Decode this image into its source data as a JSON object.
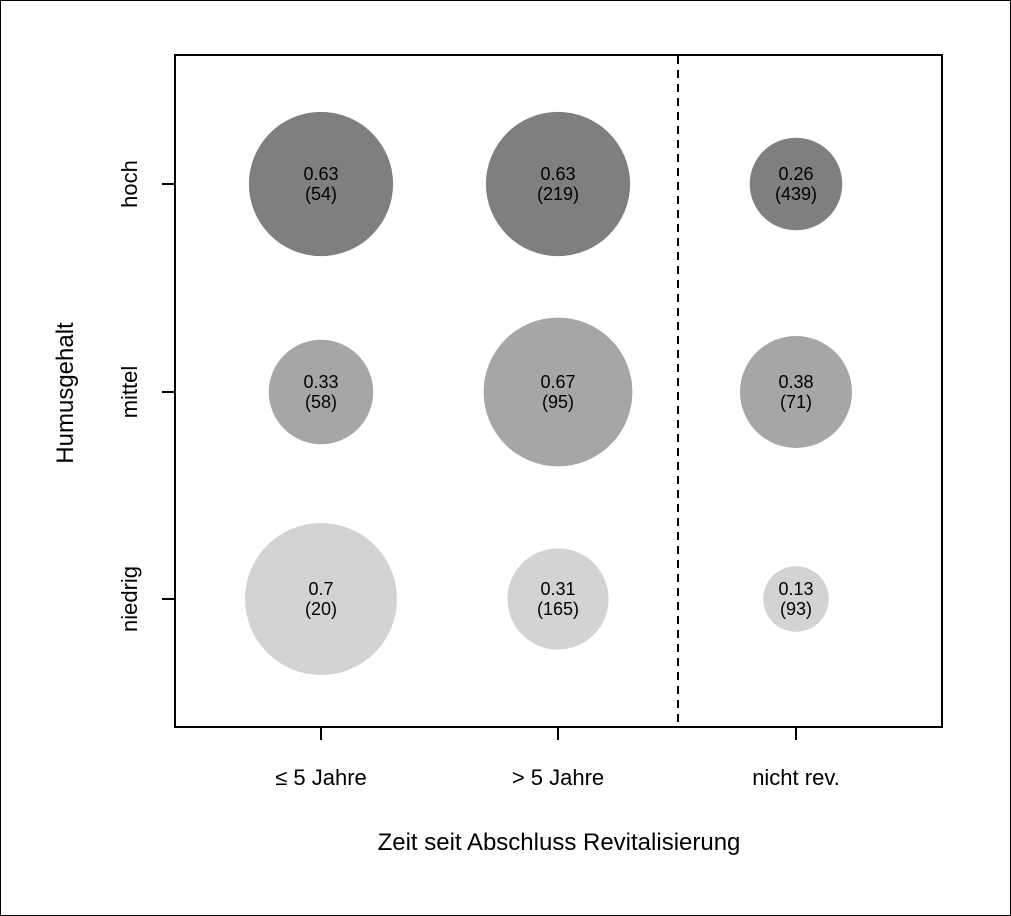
{
  "chart_data": {
    "type": "bubble",
    "xlabel": "Zeit seit Abschluss Revitalisierung",
    "ylabel": "Humusgehalt",
    "x_categories": [
      "≤ 5 Jahre",
      "> 5 Jahre",
      "nicht rev."
    ],
    "y_categories": [
      "niedrig",
      "mittel",
      "hoch"
    ],
    "row_colors": {
      "hoch": "#7f7f7f",
      "mittel": "#a6a6a6",
      "niedrig": "#d3d3d3"
    },
    "separator": {
      "style": "dashed",
      "between": [
        "> 5 Jahre",
        "nicht rev."
      ]
    },
    "points": [
      {
        "x": "≤ 5 Jahre",
        "y": "hoch",
        "value": 0.63,
        "n": 54,
        "value_label": "0.63",
        "n_label": "(54)"
      },
      {
        "x": "> 5 Jahre",
        "y": "hoch",
        "value": 0.63,
        "n": 219,
        "value_label": "0.63",
        "n_label": "(219)"
      },
      {
        "x": "nicht rev.",
        "y": "hoch",
        "value": 0.26,
        "n": 439,
        "value_label": "0.26",
        "n_label": "(439)"
      },
      {
        "x": "≤ 5 Jahre",
        "y": "mittel",
        "value": 0.33,
        "n": 58,
        "value_label": "0.33",
        "n_label": "(58)"
      },
      {
        "x": "> 5 Jahre",
        "y": "mittel",
        "value": 0.67,
        "n": 95,
        "value_label": "0.67",
        "n_label": "(95)"
      },
      {
        "x": "nicht rev.",
        "y": "mittel",
        "value": 0.38,
        "n": 71,
        "value_label": "0.38",
        "n_label": "(71)"
      },
      {
        "x": "≤ 5 Jahre",
        "y": "niedrig",
        "value": 0.7,
        "n": 20,
        "value_label": "0.7",
        "n_label": "(20)"
      },
      {
        "x": "> 5 Jahre",
        "y": "niedrig",
        "value": 0.31,
        "n": 165,
        "value_label": "0.31",
        "n_label": "(165)"
      },
      {
        "x": "nicht rev.",
        "y": "niedrig",
        "value": 0.13,
        "n": 93,
        "value_label": "0.13",
        "n_label": "(93)"
      }
    ]
  }
}
